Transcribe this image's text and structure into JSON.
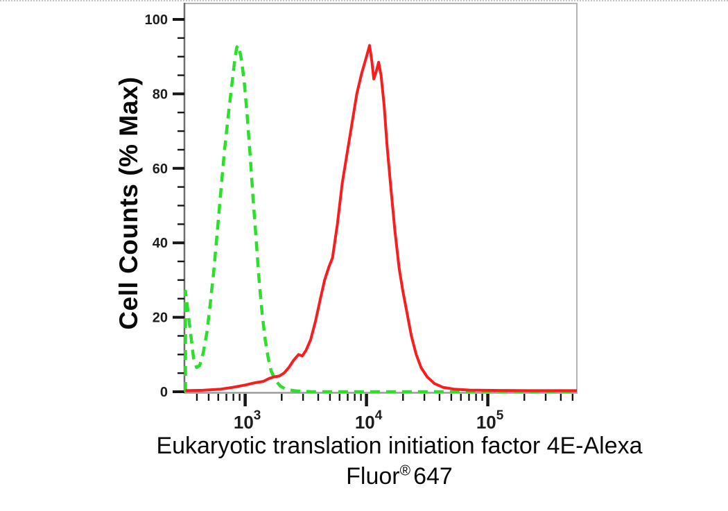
{
  "figure": {
    "background_color": "#ffffff"
  },
  "chart_data": {
    "type": "line",
    "subtype": "flow-cytometry-histogram",
    "title": "",
    "ylabel": "Cell Counts (% Max)",
    "xlabel_line1": "Eukaryotic translation initiation factor 4E-Alexa",
    "xlabel_line2": {
      "pre": "Fluor",
      "sup": "®",
      "post": "647"
    },
    "x_scale": "log10",
    "x_range_log10": [
      2.505,
      5.734
    ],
    "ylim": [
      0,
      100
    ],
    "grid": false,
    "legend_position": "none",
    "y_axis": {
      "major_tick_values": [
        0,
        20,
        40,
        60,
        80,
        100
      ],
      "major_tick_labels": [
        "0",
        "20",
        "40",
        "60",
        "80",
        "100"
      ],
      "minor_tick_step": 5
    },
    "x_axis": {
      "major_ticks": [
        {
          "log10": 3,
          "base": "10",
          "exp": "3"
        },
        {
          "log10": 4,
          "base": "10",
          "exp": "4"
        },
        {
          "log10": 5,
          "base": "10",
          "exp": "5"
        }
      ],
      "minor_ticks": "2,3,4,5,6,7,8,9 per decade (log scale)"
    },
    "axis_colors": {
      "y_axis_line": "#6f6f6f",
      "x_axis_line": "#9b9b9b",
      "box_border": "#b4b4b4",
      "tick_color": "#161616",
      "tick_label_color": "#1d1d1d"
    },
    "series": [
      {
        "name": "green-dashed-curve",
        "color": "#2bdf2b",
        "line_style": "dashed",
        "peak": {
          "x_log10": 2.945,
          "y_pct": 93
        },
        "points_log10_pct": [
          [
            2.508,
            0
          ],
          [
            2.508,
            27
          ],
          [
            2.53,
            21
          ],
          [
            2.555,
            14.5
          ],
          [
            2.575,
            9
          ],
          [
            2.6,
            6.5
          ],
          [
            2.625,
            7
          ],
          [
            2.655,
            10.5
          ],
          [
            2.685,
            16
          ],
          [
            2.71,
            23
          ],
          [
            2.74,
            32
          ],
          [
            2.77,
            43
          ],
          [
            2.8,
            54
          ],
          [
            2.83,
            65
          ],
          [
            2.86,
            74
          ],
          [
            2.885,
            81
          ],
          [
            2.91,
            88
          ],
          [
            2.93,
            92.5
          ],
          [
            2.945,
            93
          ],
          [
            2.965,
            90
          ],
          [
            2.99,
            84
          ],
          [
            3.015,
            75
          ],
          [
            3.04,
            64
          ],
          [
            3.065,
            52
          ],
          [
            3.09,
            41
          ],
          [
            3.115,
            30
          ],
          [
            3.14,
            21
          ],
          [
            3.165,
            14
          ],
          [
            3.19,
            9
          ],
          [
            3.215,
            5.5
          ],
          [
            3.25,
            3
          ],
          [
            3.29,
            1.5
          ],
          [
            3.34,
            0.6
          ],
          [
            3.42,
            0.2
          ],
          [
            3.55,
            0
          ],
          [
            4.2,
            0
          ],
          [
            5.0,
            0
          ],
          [
            5.734,
            0
          ]
        ]
      },
      {
        "name": "red-solid-curve",
        "color": "#fa1d1d",
        "line_style": "solid",
        "peak": {
          "x_log10": 4.025,
          "y_pct": 93
        },
        "points_log10_pct": [
          [
            2.508,
            0.3
          ],
          [
            2.65,
            0.4
          ],
          [
            2.8,
            0.7
          ],
          [
            2.9,
            1.2
          ],
          [
            3.0,
            1.8
          ],
          [
            3.08,
            2.4
          ],
          [
            3.15,
            2.8
          ],
          [
            3.2,
            3.6
          ],
          [
            3.24,
            4.0
          ],
          [
            3.28,
            4.2
          ],
          [
            3.32,
            5.0
          ],
          [
            3.36,
            6.5
          ],
          [
            3.4,
            8.5
          ],
          [
            3.44,
            10.0
          ],
          [
            3.47,
            9.6
          ],
          [
            3.5,
            11
          ],
          [
            3.54,
            14
          ],
          [
            3.58,
            19
          ],
          [
            3.62,
            25
          ],
          [
            3.655,
            30
          ],
          [
            3.69,
            33.5
          ],
          [
            3.72,
            36
          ],
          [
            3.76,
            45
          ],
          [
            3.8,
            56
          ],
          [
            3.84,
            64
          ],
          [
            3.88,
            72
          ],
          [
            3.92,
            80
          ],
          [
            3.96,
            85.5
          ],
          [
            4.0,
            90
          ],
          [
            4.025,
            93
          ],
          [
            4.045,
            88.5
          ],
          [
            4.06,
            84
          ],
          [
            4.08,
            86
          ],
          [
            4.1,
            88.5
          ],
          [
            4.12,
            85
          ],
          [
            4.145,
            77
          ],
          [
            4.17,
            66
          ],
          [
            4.2,
            55
          ],
          [
            4.235,
            43
          ],
          [
            4.27,
            33
          ],
          [
            4.3,
            27
          ],
          [
            4.335,
            21
          ],
          [
            4.37,
            15
          ],
          [
            4.41,
            10
          ],
          [
            4.45,
            6.5
          ],
          [
            4.5,
            4
          ],
          [
            4.56,
            2.2
          ],
          [
            4.63,
            1.2
          ],
          [
            4.72,
            0.7
          ],
          [
            4.85,
            0.45
          ],
          [
            5.1,
            0.35
          ],
          [
            5.4,
            0.3
          ],
          [
            5.734,
            0.3
          ]
        ]
      }
    ]
  }
}
